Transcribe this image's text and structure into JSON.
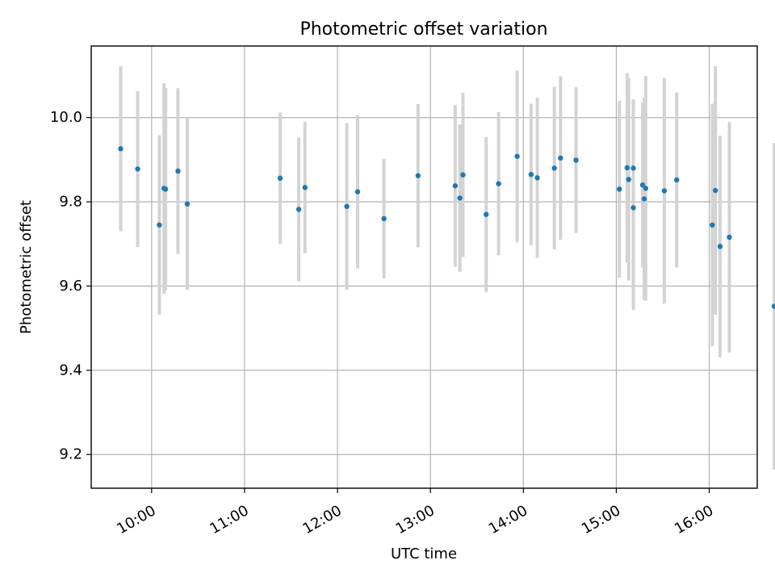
{
  "chart_data": {
    "type": "scatter",
    "title": "Photometric offset variation",
    "xlabel": "UTC time",
    "ylabel": "Photometric offset",
    "x_tick_labels": [
      "10:00",
      "11:00",
      "12:00",
      "13:00",
      "14:00",
      "15:00",
      "16:00"
    ],
    "x_ticks": [
      "10:00",
      "11:00",
      "12:00",
      "13:00",
      "14:00",
      "15:00",
      "16:00"
    ],
    "xlim": [
      "09:21",
      "16:31"
    ],
    "y_ticks": [
      9.2,
      9.4,
      9.6,
      9.8,
      10.0
    ],
    "y_tick_labels": [
      "9.2",
      "9.4",
      "9.6",
      "9.8",
      "10.0"
    ],
    "ylim": [
      9.12,
      10.17
    ],
    "grid": true,
    "legend": "none",
    "colors": {
      "point": "#1f77b4",
      "errorbar": "#d3d3d3",
      "grid": "#b0b0b0"
    },
    "series": [
      {
        "points": [
          {
            "x": "09:40",
            "y": 9.926,
            "err": 0.196
          },
          {
            "x": "09:51",
            "y": 9.878,
            "err": 0.185
          },
          {
            "x": "10:05",
            "y": 9.745,
            "err": 0.213
          },
          {
            "x": "10:08",
            "y": 9.832,
            "err": 0.25
          },
          {
            "x": "10:09",
            "y": 9.83,
            "err": 0.24
          },
          {
            "x": "10:17",
            "y": 9.873,
            "err": 0.197
          },
          {
            "x": "10:23",
            "y": 9.795,
            "err": 0.204
          },
          {
            "x": "11:23",
            "y": 9.856,
            "err": 0.156
          },
          {
            "x": "11:35",
            "y": 9.782,
            "err": 0.171
          },
          {
            "x": "11:39",
            "y": 9.834,
            "err": 0.156
          },
          {
            "x": "12:06",
            "y": 9.789,
            "err": 0.198
          },
          {
            "x": "12:13",
            "y": 9.824,
            "err": 0.182
          },
          {
            "x": "12:30",
            "y": 9.76,
            "err": 0.142
          },
          {
            "x": "12:52",
            "y": 9.862,
            "err": 0.17
          },
          {
            "x": "13:16",
            "y": 9.838,
            "err": 0.192
          },
          {
            "x": "13:19",
            "y": 9.809,
            "err": 0.175
          },
          {
            "x": "13:21",
            "y": 9.864,
            "err": 0.195
          },
          {
            "x": "13:36",
            "y": 9.77,
            "err": 0.184
          },
          {
            "x": "13:44",
            "y": 9.843,
            "err": 0.17
          },
          {
            "x": "13:56",
            "y": 9.908,
            "err": 0.204
          },
          {
            "x": "14:05",
            "y": 9.865,
            "err": 0.168
          },
          {
            "x": "14:09",
            "y": 9.857,
            "err": 0.19
          },
          {
            "x": "14:20",
            "y": 9.88,
            "err": 0.193
          },
          {
            "x": "14:24",
            "y": 9.904,
            "err": 0.194
          },
          {
            "x": "14:34",
            "y": 9.899,
            "err": 0.173
          },
          {
            "x": "15:02",
            "y": 9.83,
            "err": 0.21
          },
          {
            "x": "15:07",
            "y": 9.881,
            "err": 0.225
          },
          {
            "x": "15:08",
            "y": 9.853,
            "err": 0.24
          },
          {
            "x": "15:11",
            "y": 9.88,
            "err": 0.163
          },
          {
            "x": "15:11",
            "y": 9.786,
            "err": 0.243
          },
          {
            "x": "15:17",
            "y": 9.84,
            "err": 0.196
          },
          {
            "x": "15:18",
            "y": 9.807,
            "err": 0.24
          },
          {
            "x": "15:19",
            "y": 9.832,
            "err": 0.267
          },
          {
            "x": "15:31",
            "y": 9.826,
            "err": 0.268
          },
          {
            "x": "15:39",
            "y": 9.852,
            "err": 0.208
          },
          {
            "x": "16:02",
            "y": 9.745,
            "err": 0.288
          },
          {
            "x": "16:04",
            "y": 9.827,
            "err": 0.295
          },
          {
            "x": "16:07",
            "y": 9.694,
            "err": 0.263
          },
          {
            "x": "16:13",
            "y": 9.716,
            "err": 0.274
          },
          {
            "x": "16:42",
            "y": 9.552,
            "err": 0.388
          }
        ]
      }
    ]
  }
}
